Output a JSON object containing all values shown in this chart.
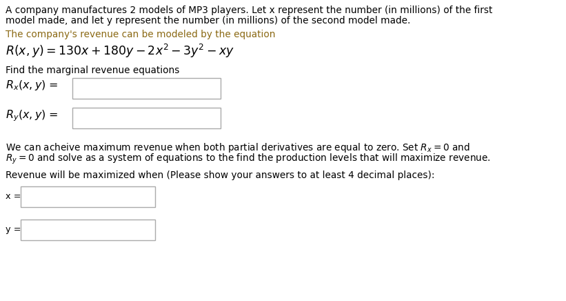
{
  "bg_color": "#ffffff",
  "black": "#000000",
  "brown": "#8B6914",
  "line1": "A company manufactures 2 models of MP3 players. Let x represent the number (in millions) of the first",
  "line2": "model made, and let y represent the number (in millions) of the second model made.",
  "line3": "The company's revenue can be modeled by the equation",
  "find_marginal": "Find the marginal revenue equations",
  "we_can_line1": "We can acheive maximum revenue when both partial derivatives are equal to zero. Set $R_x = 0$ and",
  "we_can_line2": "$R_y = 0$ and solve as a system of equations to the find the production levels that will maximize revenue.",
  "revenue_max": "Revenue will be maximized when (Please show your answers to at least 4 decimal places):",
  "fs_body": 9.8,
  "fs_eq": 12.5,
  "fs_label": 11.5,
  "box_edge": "#aaaaaa",
  "box_face": "#ffffff"
}
